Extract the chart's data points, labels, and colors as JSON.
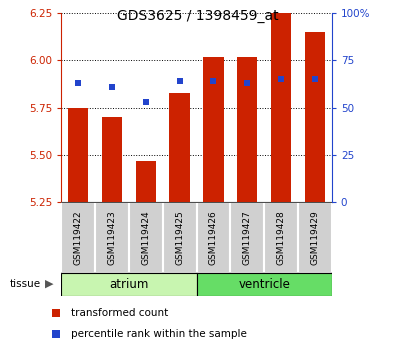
{
  "title": "GDS3625 / 1398459_at",
  "samples": [
    "GSM119422",
    "GSM119423",
    "GSM119424",
    "GSM119425",
    "GSM119426",
    "GSM119427",
    "GSM119428",
    "GSM119429"
  ],
  "red_values": [
    5.75,
    5.7,
    5.47,
    5.83,
    6.02,
    6.02,
    6.25,
    6.15
  ],
  "blue_pct": [
    63,
    61,
    53,
    64,
    64,
    63,
    65,
    65
  ],
  "ylim": [
    5.25,
    6.25
  ],
  "y_ticks": [
    5.25,
    5.5,
    5.75,
    6.0,
    6.25
  ],
  "y2_ticks": [
    0,
    25,
    50,
    75,
    100
  ],
  "bar_bottom": 5.25,
  "tissue_groups": [
    {
      "label": "atrium",
      "start": 0,
      "end": 4,
      "color": "#c8f5b0"
    },
    {
      "label": "ventricle",
      "start": 4,
      "end": 8,
      "color": "#66dd66"
    }
  ],
  "red_color": "#cc2200",
  "blue_color": "#2244cc",
  "bar_width": 0.6,
  "blue_marker_size": 5,
  "legend_red": "transformed count",
  "legend_blue": "percentile rank within the sample",
  "grid_color": "black",
  "sample_box_color": "#d0d0d0",
  "tissue_border_color": "#000000"
}
